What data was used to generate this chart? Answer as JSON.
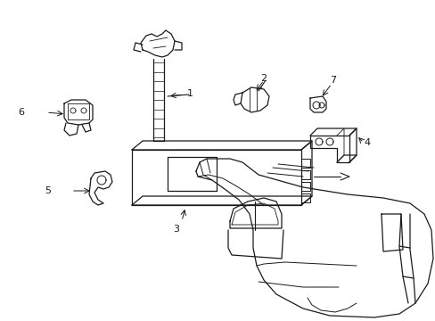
{
  "background_color": "#ffffff",
  "line_color": "#1a1a1a",
  "lw": 0.9,
  "fig_width": 4.89,
  "fig_height": 3.6,
  "dpi": 100
}
